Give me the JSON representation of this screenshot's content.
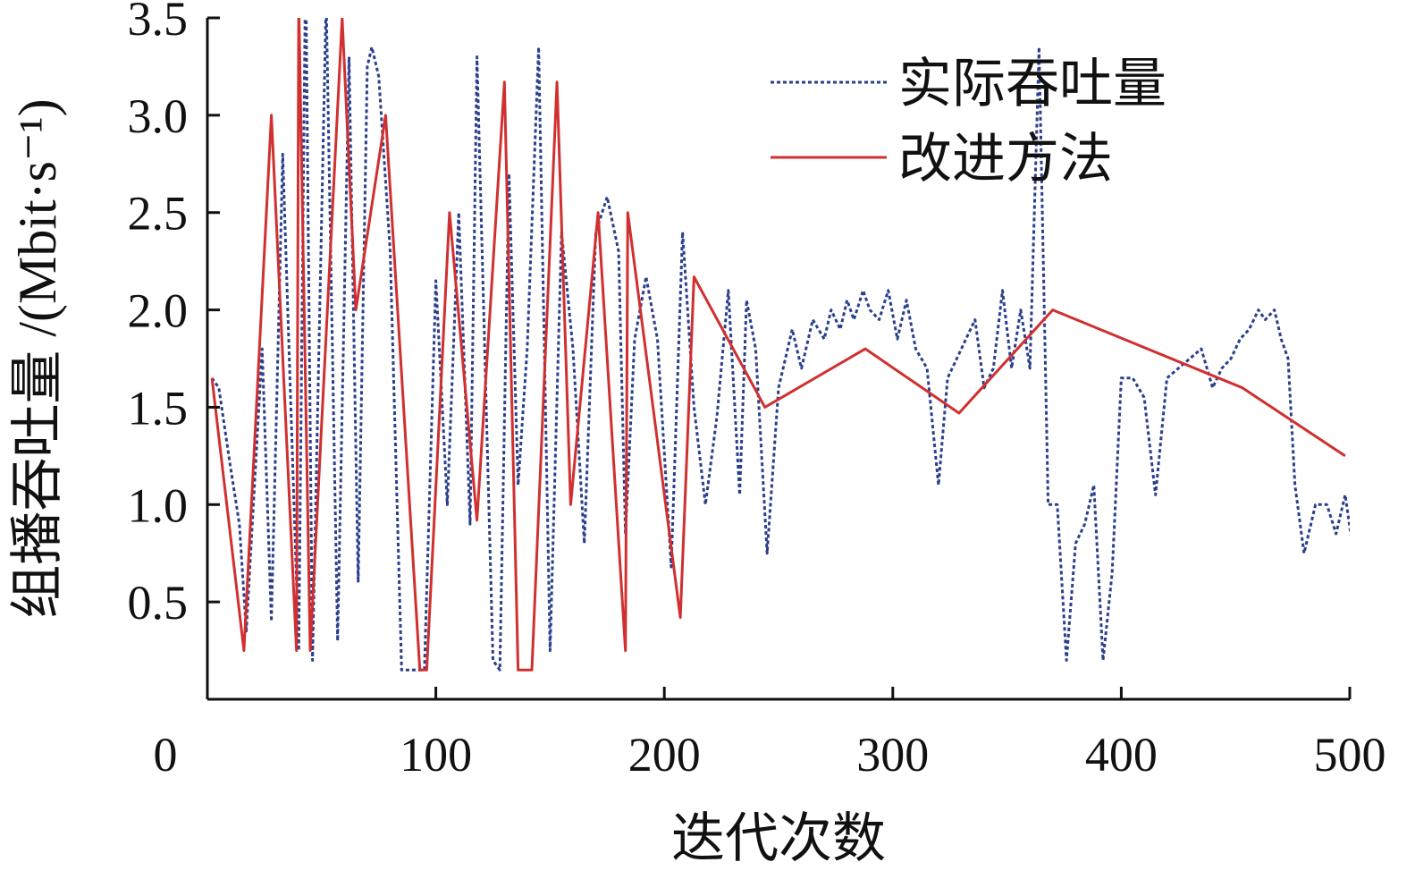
{
  "chart_data": {
    "type": "line",
    "xlabel": "迭代次数",
    "ylabel": "组播吞吐量 /(Mbit·s⁻¹)",
    "xlim": [
      0,
      500
    ],
    "ylim": [
      0,
      3.5
    ],
    "grid": false,
    "legend_position": "top-right",
    "x_ticks": [
      "0",
      "100",
      "200",
      "300",
      "400",
      "500"
    ],
    "x_tick_values": [
      0,
      100,
      200,
      300,
      400,
      500
    ],
    "y_ticks": [
      "0.5",
      "1.0",
      "1.5",
      "2.0",
      "2.5",
      "3.0",
      "3.5"
    ],
    "y_tick_values": [
      0.5,
      1.0,
      1.5,
      2.0,
      2.5,
      3.0,
      3.5
    ],
    "series": [
      {
        "name": "实际吞吐量",
        "color": "#2b3f8c",
        "style": "dotted",
        "x": [
          2,
          5,
          10,
          14,
          17,
          24,
          28,
          33,
          40,
          43,
          46,
          52,
          57,
          62,
          66,
          70,
          72,
          75,
          80,
          85,
          95,
          100,
          105,
          110,
          115,
          118,
          125,
          128,
          132,
          136,
          140,
          145,
          150,
          155,
          160,
          165,
          170,
          175,
          180,
          183,
          187,
          192,
          197,
          203,
          208,
          213,
          218,
          223,
          228,
          233,
          236,
          240,
          245,
          250,
          256,
          260,
          265,
          270,
          273,
          277,
          280,
          283,
          287,
          290,
          294,
          298,
          302,
          306,
          310,
          315,
          320,
          324,
          328,
          332,
          336,
          340,
          344,
          348,
          352,
          356,
          360,
          364,
          368,
          372,
          376,
          380,
          384,
          388,
          392,
          396,
          400,
          405,
          410,
          415,
          420,
          425,
          430,
          435,
          440,
          444,
          448,
          452,
          456,
          460,
          463,
          467,
          470,
          473,
          476,
          480,
          485,
          490,
          494,
          498,
          501
        ],
        "values": [
          1.65,
          1.6,
          1.2,
          0.9,
          0.35,
          1.8,
          0.4,
          2.8,
          0.25,
          3.8,
          0.2,
          3.6,
          0.3,
          3.3,
          0.6,
          3.25,
          3.35,
          3.2,
          2.3,
          0.15,
          0.15,
          2.15,
          1.0,
          2.5,
          0.9,
          3.3,
          0.2,
          0.15,
          2.7,
          1.1,
          1.8,
          3.35,
          0.25,
          2.4,
          1.8,
          0.8,
          2.4,
          2.58,
          2.3,
          0.85,
          1.85,
          2.17,
          1.85,
          0.68,
          2.4,
          1.5,
          1.0,
          1.45,
          2.1,
          1.05,
          2.05,
          1.8,
          0.75,
          1.6,
          1.9,
          1.7,
          1.95,
          1.85,
          2.0,
          1.9,
          2.05,
          1.95,
          2.1,
          2.0,
          1.95,
          2.1,
          1.85,
          2.05,
          1.8,
          1.7,
          1.1,
          1.65,
          1.75,
          1.85,
          1.95,
          1.6,
          1.7,
          2.1,
          1.7,
          2.0,
          1.7,
          3.35,
          1.0,
          1.0,
          0.2,
          0.8,
          0.9,
          1.1,
          0.2,
          0.65,
          1.65,
          1.65,
          1.55,
          1.05,
          1.65,
          1.7,
          1.75,
          1.8,
          1.6,
          1.7,
          1.75,
          1.85,
          1.9,
          2.0,
          1.95,
          2.0,
          1.85,
          1.75,
          1.1,
          0.75,
          1.0,
          1.0,
          0.85,
          1.05,
          0.8
        ],
        "note_unused": null
      },
      {
        "name": "改进方法",
        "color": "#d03030",
        "style": "solid",
        "x": [
          2,
          16,
          28,
          39,
          40,
          45,
          59,
          65,
          78,
          93,
          96,
          106,
          118,
          130,
          136,
          142,
          153,
          159,
          171,
          183,
          184,
          207,
          213,
          244,
          288,
          329,
          370,
          453,
          498
        ],
        "values": [
          1.65,
          0.25,
          3.0,
          0.25,
          3.6,
          0.25,
          3.5,
          2.0,
          3.0,
          0.15,
          0.15,
          2.5,
          0.92,
          3.17,
          0.15,
          0.15,
          3.17,
          1.0,
          2.5,
          0.25,
          2.5,
          0.42,
          2.17,
          1.5,
          1.8,
          1.47,
          2.0,
          1.6,
          1.25
        ]
      }
    ]
  }
}
